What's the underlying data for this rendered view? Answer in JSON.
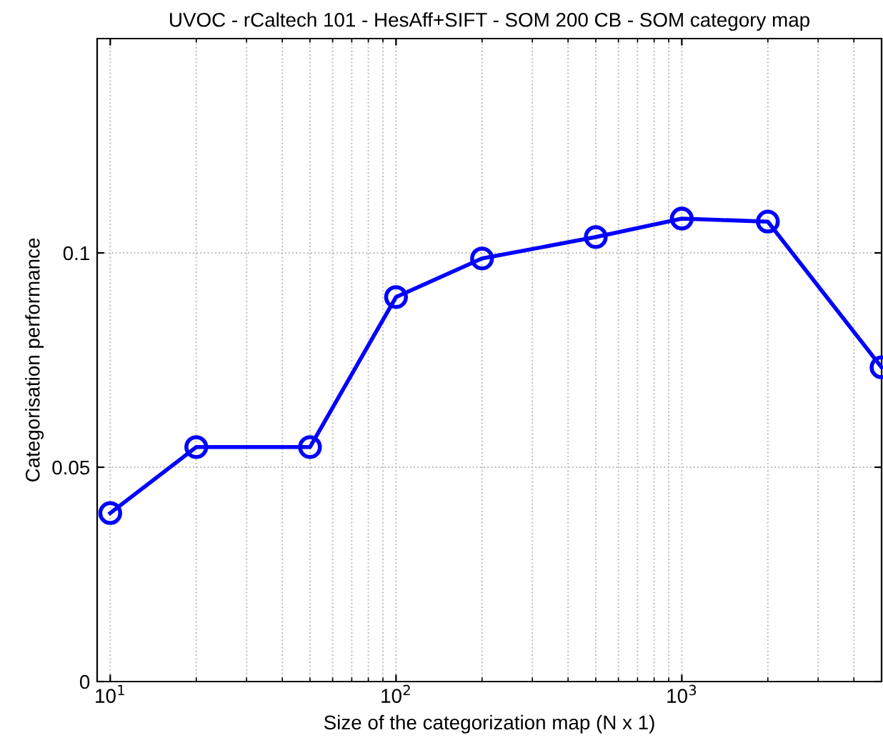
{
  "chart_data": {
    "type": "line",
    "title": "UVOC - rCaltech 101 - HesAff+SIFT - SOM 200 CB - SOM category map",
    "xlabel": "Size of the categorization map (N x 1)",
    "ylabel": "Categorisation performance",
    "x": [
      10,
      20,
      50,
      100,
      200,
      500,
      1000,
      2000,
      5000
    ],
    "series": [
      {
        "color": "#0000ff",
        "values": [
          0.0393,
          0.0547,
          0.0547,
          0.0897,
          0.0987,
          0.1037,
          0.108,
          0.1073,
          0.0733
        ]
      }
    ],
    "log": "x",
    "xlim": [
      9,
      5000
    ],
    "ylim": [
      0,
      0.15
    ],
    "xticks": [
      {
        "value": 10,
        "label": "10$^{1}$"
      },
      {
        "value": 100,
        "label": "10$^{2}$"
      },
      {
        "value": 1000,
        "label": "10$^{3}$"
      }
    ],
    "yticks": [
      0,
      0.05,
      0.1
    ],
    "grid": true,
    "marker": "circle",
    "line_style": "solid"
  }
}
